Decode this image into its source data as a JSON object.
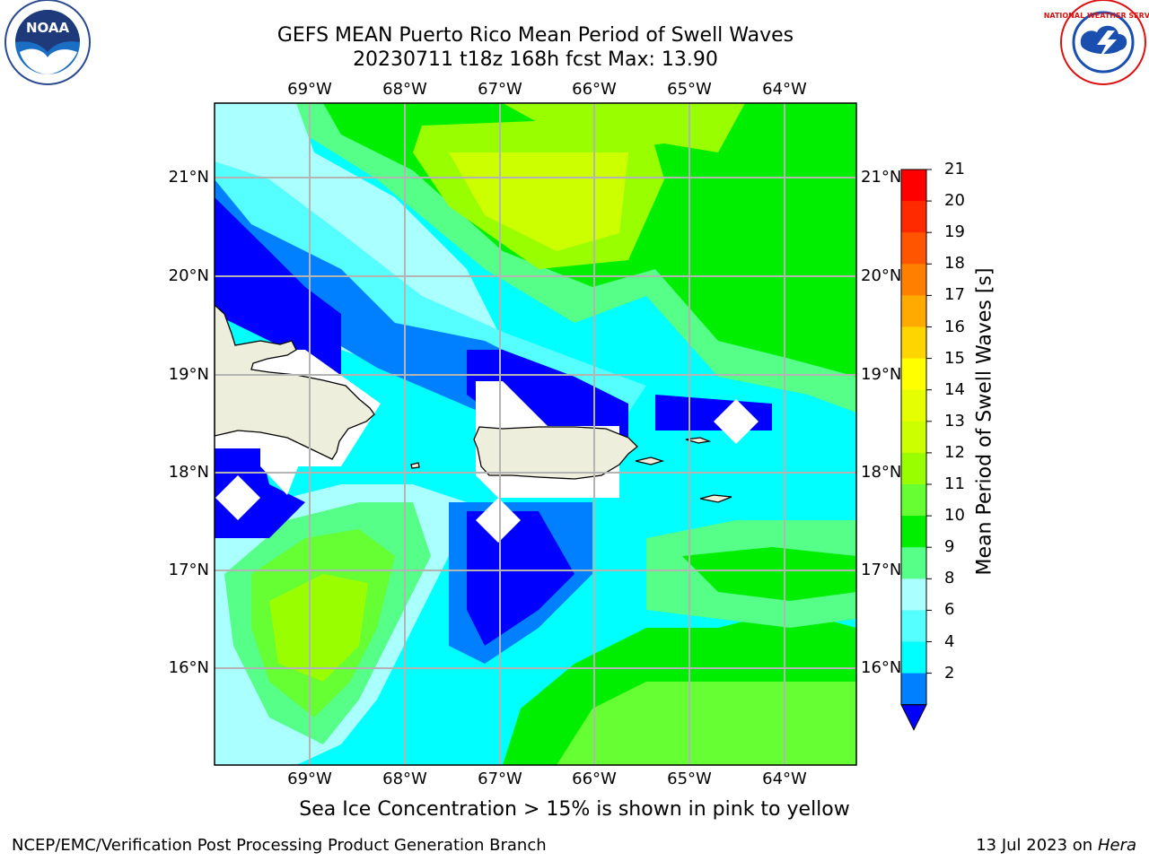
{
  "title": {
    "line1": "GEFS MEAN Puerto Rico Mean Period of Swell Waves",
    "line2": "20230711 t18z 168h fcst   Max: 13.90"
  },
  "map": {
    "lon_labels": [
      "69°W",
      "68°W",
      "67°W",
      "66°W",
      "65°W",
      "64°W"
    ],
    "lat_labels": [
      "21°N",
      "20°N",
      "19°N",
      "18°N",
      "17°N",
      "16°N"
    ],
    "land_color": "#eeeedc",
    "grid_color": "#b4b4b4"
  },
  "colorbar": {
    "title": "Mean Period of Swell Waves [s]",
    "ticks": [
      "21",
      "20",
      "19",
      "18",
      "17",
      "16",
      "15",
      "14",
      "13",
      "12",
      "11",
      "10",
      "9",
      "8",
      "6",
      "4",
      "2"
    ],
    "colors": [
      "#ff0000",
      "#ff2a00",
      "#ff5500",
      "#ff8000",
      "#ffaa00",
      "#ffd500",
      "#ffff00",
      "#e6ff00",
      "#ccff00",
      "#99ff00",
      "#66ff33",
      "#00ee00",
      "#55ff88",
      "#aaffff",
      "#55ffff",
      "#00ffff",
      "#0080ff",
      "#0000ff"
    ]
  },
  "caption": "Sea Ice Concentration > 15% is shown in pink to yellow",
  "footer": {
    "left": "NCEP/EMC/Verification Post Processing Product Generation Branch",
    "right_prefix": "13 Jul 2023 on ",
    "right_host": "Hera"
  },
  "logos": {
    "noaa_text": "NOAA",
    "nws_text": "NATIONAL WEATHER SERVICE"
  }
}
